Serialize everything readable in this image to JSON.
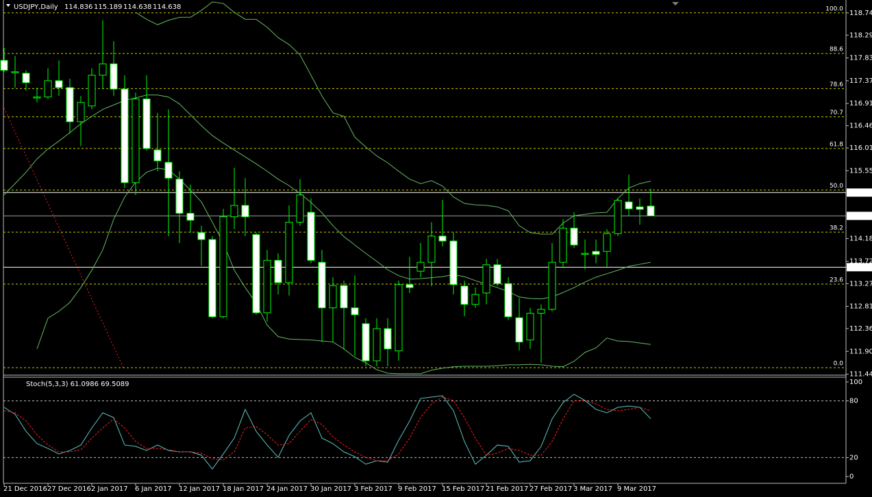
{
  "chart_data": [
    {
      "type": "candlestick",
      "title": "USDJPY,Daily",
      "ohlc_header": [
        114.836,
        115.189,
        114.638,
        114.638
      ],
      "categories": [
        "21 Dec 2016",
        null,
        null,
        null,
        "27 Dec 2016",
        null,
        null,
        null,
        "2 Jan 2017",
        null,
        null,
        null,
        "6 Jan 2017",
        null,
        null,
        null,
        "12 Jan 2017",
        null,
        null,
        null,
        "18 Jan 2017",
        null,
        null,
        null,
        "24 Jan 2017",
        null,
        null,
        null,
        "30 Jan 2017",
        null,
        null,
        null,
        "3 Feb 2017",
        null,
        null,
        null,
        "9 Feb 2017",
        null,
        null,
        null,
        "15 Feb 2017",
        null,
        null,
        null,
        "21 Feb 2017",
        null,
        null,
        null,
        "27 Feb 2017",
        null,
        null,
        null,
        "3 Mar 2017",
        null,
        null,
        null,
        "9 Mar 2017",
        null,
        null,
        null
      ],
      "open": [
        117.78,
        117.53,
        117.52,
        117.02,
        117.04,
        117.37,
        117.23,
        116.54,
        116.86,
        117.48,
        117.71,
        117.2,
        115.31,
        117.0,
        115.97,
        115.72,
        115.38,
        114.69,
        114.3,
        114.16,
        112.6,
        114.62,
        114.85,
        114.26,
        112.68,
        113.74,
        113.29,
        114.51,
        114.71,
        113.7,
        112.78,
        113.23,
        112.78,
        112.46,
        111.71,
        112.36,
        111.91,
        113.25,
        113.52,
        113.7,
        114.23,
        114.13,
        113.22,
        112.85,
        113.08,
        113.65,
        113.27,
        112.58,
        112.13,
        112.67,
        112.75,
        113.7,
        114.39,
        113.86,
        113.92,
        113.92,
        114.28,
        114.92,
        114.82,
        114.836
      ],
      "high": [
        118.03,
        117.87,
        117.58,
        117.23,
        117.62,
        117.78,
        117.41,
        117.06,
        117.62,
        118.59,
        118.17,
        117.48,
        117.13,
        117.48,
        116.72,
        116.79,
        115.54,
        115.27,
        114.44,
        114.23,
        114.78,
        115.61,
        115.4,
        114.3,
        113.95,
        113.88,
        114.85,
        115.38,
        114.99,
        113.95,
        113.4,
        113.33,
        113.44,
        112.57,
        112.57,
        112.57,
        113.33,
        113.81,
        114.09,
        114.51,
        114.96,
        114.3,
        113.33,
        113.19,
        113.77,
        113.77,
        113.4,
        112.98,
        112.78,
        112.85,
        114.09,
        114.57,
        114.71,
        114.16,
        114.16,
        114.37,
        114.99,
        115.47,
        114.99,
        115.189
      ],
      "low": [
        117.55,
        117.23,
        117.17,
        116.93,
        117.0,
        117.06,
        116.3,
        116.05,
        116.79,
        117.2,
        117.06,
        115.2,
        115.06,
        115.96,
        115.54,
        114.23,
        114.09,
        114.3,
        113.63,
        112.57,
        112.57,
        114.37,
        114.23,
        112.64,
        112.5,
        113.05,
        113.03,
        114.44,
        113.68,
        112.09,
        112.09,
        111.95,
        111.81,
        111.6,
        111.6,
        111.6,
        111.71,
        113.08,
        113.4,
        113.22,
        114.02,
        113.05,
        112.61,
        112.78,
        112.85,
        113.22,
        112.53,
        111.92,
        111.95,
        111.67,
        112.71,
        113.61,
        113.99,
        113.56,
        113.68,
        113.61,
        114.23,
        114.64,
        114.46,
        114.638
      ],
      "close": [
        117.58,
        117.55,
        117.33,
        117.04,
        117.37,
        117.23,
        116.54,
        116.93,
        117.48,
        117.71,
        117.2,
        115.31,
        117.0,
        116.0,
        115.75,
        115.4,
        114.69,
        114.55,
        114.16,
        112.6,
        114.62,
        114.85,
        114.62,
        112.68,
        113.74,
        113.29,
        114.51,
        115.06,
        113.74,
        112.78,
        113.23,
        112.78,
        112.64,
        111.71,
        112.36,
        111.95,
        113.25,
        113.19,
        113.7,
        114.23,
        114.13,
        113.25,
        112.85,
        113.05,
        113.65,
        113.27,
        112.6,
        112.09,
        112.67,
        112.75,
        113.7,
        114.39,
        114.05,
        113.88,
        113.86,
        114.28,
        114.95,
        114.78,
        114.77,
        114.638
      ],
      "up_color": "#000000",
      "down_color": "#ffffff",
      "wick_color": "#00ff00",
      "bands": {
        "color": "#66bb66",
        "upper": [
          null,
          null,
          null,
          null,
          null,
          null,
          null,
          null,
          null,
          null,
          null,
          null,
          118.75,
          118.61,
          118.5,
          118.59,
          118.65,
          118.65,
          118.79,
          118.96,
          118.93,
          118.75,
          118.61,
          118.61,
          118.45,
          118.24,
          118.1,
          117.89,
          117.48,
          117.06,
          116.72,
          116.65,
          116.23,
          116.03,
          115.85,
          115.71,
          115.54,
          115.38,
          115.29,
          115.35,
          115.24,
          115.02,
          114.89,
          114.86,
          114.85,
          114.82,
          114.74,
          114.44,
          114.3,
          114.27,
          114.27,
          114.49,
          114.64,
          114.67,
          114.7,
          114.71,
          114.99,
          115.2,
          115.29,
          115.34
        ],
        "middle": [
          115.06,
          115.29,
          115.52,
          115.79,
          115.99,
          116.15,
          116.32,
          116.5,
          116.65,
          116.79,
          116.88,
          116.97,
          117.02,
          117.08,
          117.08,
          117.04,
          116.9,
          116.68,
          116.46,
          116.26,
          116.11,
          115.97,
          115.83,
          115.69,
          115.54,
          115.38,
          115.25,
          115.09,
          114.91,
          114.7,
          114.44,
          114.22,
          114.05,
          113.88,
          113.72,
          113.55,
          113.43,
          113.36,
          113.37,
          113.39,
          113.41,
          113.45,
          113.41,
          113.33,
          113.26,
          113.19,
          113.11,
          113.0,
          112.97,
          112.96,
          113.0,
          113.09,
          113.19,
          113.3,
          113.4,
          113.47,
          113.54,
          113.62,
          113.66,
          113.7
        ],
        "lower": [
          null,
          null,
          null,
          111.95,
          112.57,
          112.71,
          112.89,
          113.19,
          113.54,
          113.95,
          114.57,
          115.02,
          115.32,
          115.52,
          115.6,
          115.57,
          115.38,
          115.16,
          114.92,
          114.51,
          114.09,
          113.54,
          113.19,
          112.87,
          112.43,
          112.2,
          112.15,
          112.14,
          112.13,
          112.11,
          112.09,
          111.95,
          111.78,
          111.67,
          111.53,
          111.46,
          111.45,
          111.45,
          111.45,
          111.52,
          111.56,
          111.59,
          111.6,
          111.6,
          111.6,
          111.61,
          111.63,
          111.63,
          111.64,
          111.63,
          111.6,
          111.59,
          111.7,
          111.88,
          111.97,
          112.17,
          112.11,
          112.1,
          112.07,
          112.04
        ]
      },
      "fib_color": "#cccc00",
      "fib_levels": [
        {
          "label": "100.0",
          "value": 118.74
        },
        {
          "label": "88.6",
          "value": 117.92
        },
        {
          "label": "78.6",
          "value": 117.21
        },
        {
          "label": "70.7",
          "value": 116.64
        },
        {
          "label": "61.8",
          "value": 116.0
        },
        {
          "label": "50.0",
          "value": 115.16
        },
        {
          "label": "38.2",
          "value": 114.31
        },
        {
          "label": "23.6",
          "value": 113.26
        },
        {
          "label": "0.0",
          "value": 111.57
        }
      ],
      "price_lines": [
        115.109,
        113.601
      ],
      "bid": 114.638,
      "ylim": [
        111.42,
        119.0
      ],
      "yticks": [
        {
          "value": 118.74,
          "label": "118.740"
        },
        {
          "value": 118.29,
          "label": "118.290"
        },
        {
          "value": 117.83,
          "label": "117.830"
        },
        {
          "value": 117.37,
          "label": "117.370"
        },
        {
          "value": 116.91,
          "label": "116.910"
        },
        {
          "value": 116.46,
          "label": "116.460"
        },
        {
          "value": 116.01,
          "label": "116.010"
        },
        {
          "value": 115.55,
          "label": "115.550"
        },
        {
          "value": 114.18,
          "label": "114.180"
        },
        {
          "value": 113.72,
          "label": "113.720"
        },
        {
          "value": 113.27,
          "label": "113.270"
        },
        {
          "value": 112.81,
          "label": "112.810"
        },
        {
          "value": 112.36,
          "label": "112.360"
        },
        {
          "value": 111.9,
          "label": "111.900"
        },
        {
          "value": 111.44,
          "label": "111.440"
        }
      ]
    },
    {
      "type": "line",
      "title": "Stoch(5,3,3) 61.0986 69.5089",
      "series": [
        {
          "color": "#5fc6c6",
          "dashed": false,
          "values": [
            73.2,
            65.9,
            47.8,
            34.8,
            29.7,
            23.9,
            27.5,
            33.3,
            51.4,
            67.4,
            62.3,
            33.3,
            31.9,
            27.5,
            33.3,
            27.5,
            26.1,
            26.1,
            22.5,
            8.0,
            23.9,
            40.6,
            71.0,
            47.8,
            33.3,
            20.3,
            43.5,
            58.7,
            67.4,
            40.6,
            34.8,
            26.1,
            21.0,
            13.0,
            16.7,
            15.2,
            38.4,
            58.7,
            82.6,
            84.1,
            85.5,
            69.6,
            37.0,
            13.0,
            22.5,
            33.3,
            31.9,
            15.2,
            16.7,
            31.9,
            60.9,
            78.3,
            87.0,
            80.4,
            71.0,
            67.4,
            73.2,
            74.6,
            73.2,
            61.1
          ]
        },
        {
          "color": "#ff2020",
          "dashed": true,
          "values": [
            69.6,
            67.4,
            58.7,
            44.2,
            33.3,
            26.1,
            26.1,
            28.3,
            40.6,
            51.4,
            60.9,
            51.4,
            37.0,
            29.7,
            29.7,
            28.3,
            26.1,
            26.1,
            24.6,
            18.8,
            17.4,
            26.1,
            51.4,
            52.9,
            44.2,
            33.3,
            34.8,
            47.8,
            60.1,
            55.1,
            42.0,
            33.3,
            26.1,
            20.3,
            16.7,
            16.7,
            23.9,
            40.6,
            62.3,
            76.8,
            84.1,
            80.4,
            62.3,
            40.6,
            22.5,
            24.6,
            29.7,
            27.5,
            22.5,
            22.5,
            37.0,
            60.9,
            80.4,
            80.4,
            76.8,
            71.0,
            69.6,
            71.0,
            73.2,
            69.5
          ]
        }
      ],
      "levels": [
        20,
        80
      ],
      "ylim": [
        -7,
        104
      ],
      "yticks": [
        0,
        20,
        80,
        100
      ]
    }
  ]
}
